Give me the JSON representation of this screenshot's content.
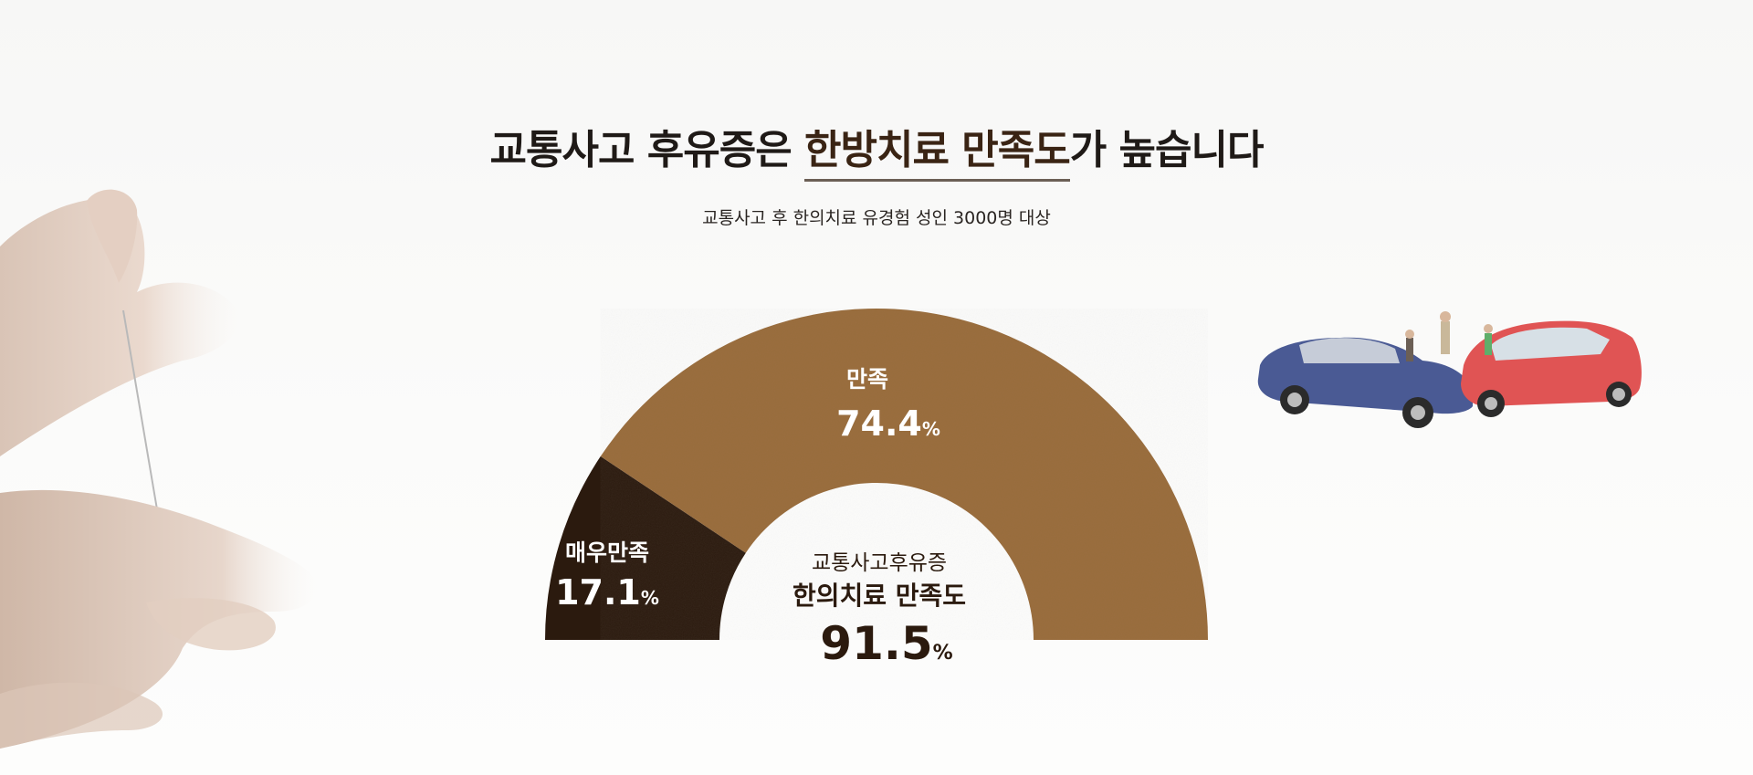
{
  "heading": {
    "text_before": "교통사고 후유증은 ",
    "text_highlight": "한방치료 만족도",
    "text_after": "가 높습니다"
  },
  "subheading": "교통사고 후 한의치료 유경험 성인 3000명 대상",
  "colors": {
    "satisfied": "#9a6e3f",
    "very_satisfied": "#2b1a0e",
    "center_total": "#2b1a0e"
  },
  "chart_data": {
    "type": "pie",
    "style": "half-donut",
    "unit": "%",
    "slices": [
      {
        "label": "매우만족",
        "value": 17.1
      },
      {
        "label": "만족",
        "value": 74.4
      }
    ],
    "center": {
      "line1": "교통사고후유증",
      "line2": "한의치료 만족도",
      "value": 91.5
    }
  }
}
